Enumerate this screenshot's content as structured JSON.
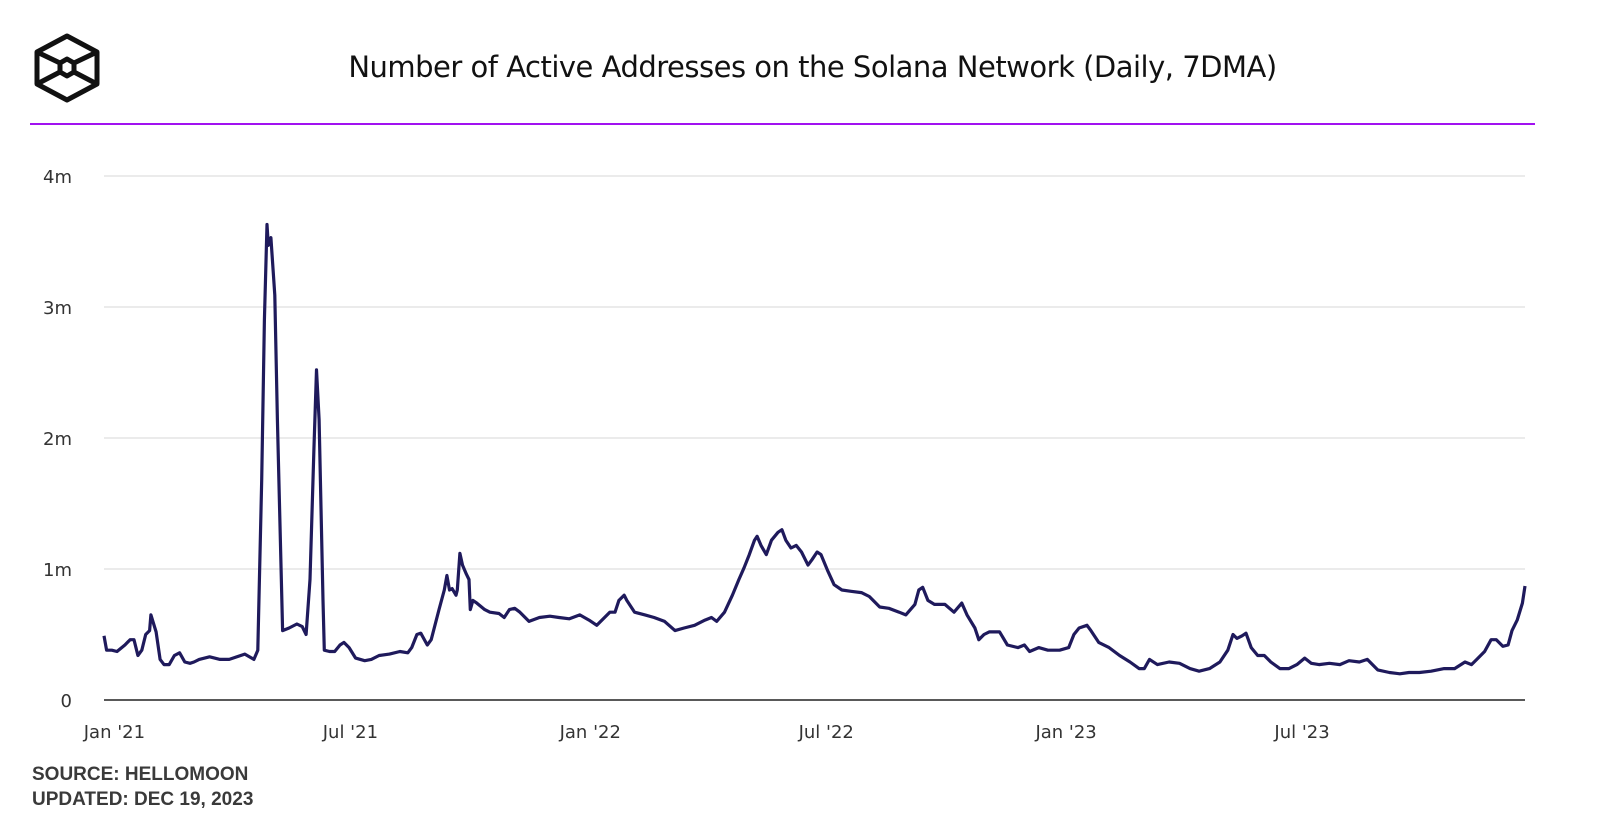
{
  "footer": {
    "source": "SOURCE: HELLOMOON",
    "updated": "UPDATED: DEC 19, 2023"
  },
  "colors": {
    "line": "#1f1a5c",
    "accent": "#a112f0",
    "grid": "#ebebeb"
  },
  "chart_data": {
    "type": "line",
    "title": "Number of Active Addresses on the Solana Network (Daily, 7DMA)",
    "xlabel": "",
    "ylabel": "",
    "x_unit": "days since 2021-01-01",
    "xlim": [
      -8,
      1082
    ],
    "ylim": [
      0,
      4
    ],
    "y_unit": "millions of addresses",
    "grid": true,
    "yticks": [
      {
        "value": 0,
        "label": "0"
      },
      {
        "value": 1,
        "label": "1m"
      },
      {
        "value": 2,
        "label": "2m"
      },
      {
        "value": 3,
        "label": "3m"
      },
      {
        "value": 4,
        "label": "4m"
      }
    ],
    "xticks": [
      {
        "value": 0,
        "label": "Jan '21"
      },
      {
        "value": 181,
        "label": "Jul '21"
      },
      {
        "value": 365,
        "label": "Jan '22"
      },
      {
        "value": 546,
        "label": "Jul '22"
      },
      {
        "value": 730,
        "label": "Jan '23"
      },
      {
        "value": 911,
        "label": "Jul '23"
      }
    ],
    "series": [
      {
        "name": "Active Addresses (7DMA)",
        "x": [
          -8,
          -6,
          -2,
          2,
          8,
          12,
          15,
          18,
          21,
          24,
          27,
          28,
          32,
          35,
          38,
          42,
          46,
          50,
          54,
          58,
          61,
          65,
          73,
          81,
          88,
          100,
          107,
          110,
          113,
          115,
          117,
          118,
          120,
          123,
          125,
          129,
          134,
          140,
          144,
          147,
          150,
          153,
          155,
          157,
          160,
          161,
          165,
          169,
          173,
          176,
          180,
          185,
          192,
          197,
          203,
          211,
          219,
          225,
          228,
          232,
          235,
          240,
          243,
          249,
          253,
          255,
          257,
          259,
          262,
          263,
          265,
          267,
          270,
          272,
          273,
          275,
          278,
          284,
          288,
          295,
          299,
          303,
          307,
          311,
          318,
          326,
          334,
          341,
          349,
          357,
          364,
          370,
          380,
          384,
          387,
          391,
          393,
          399,
          407,
          414,
          422,
          430,
          437,
          445,
          453,
          458,
          462,
          468,
          474,
          479,
          483,
          487,
          491,
          493,
          496,
          500,
          504,
          509,
          512,
          515,
          519,
          523,
          527,
          532,
          535,
          539,
          542,
          547,
          552,
          558,
          565,
          573,
          579,
          587,
          594,
          602,
          607,
          614,
          617,
          620,
          624,
          629,
          637,
          644,
          650,
          654,
          660,
          663,
          667,
          671,
          679,
          685,
          693,
          698,
          702,
          709,
          716,
          725,
          732,
          736,
          740,
          746,
          749,
          755,
          763,
          771,
          779,
          786,
          790,
          794,
          800,
          809,
          817,
          825,
          832,
          840,
          848,
          854,
          858,
          861,
          865,
          868,
          872,
          877,
          882,
          887,
          894,
          901,
          907,
          913,
          918,
          924,
          932,
          940,
          947,
          955,
          961,
          969,
          978,
          986,
          993,
          1001,
          1010,
          1020,
          1028,
          1036,
          1041,
          1045,
          1051,
          1056,
          1060,
          1065,
          1069,
          1072,
          1076,
          1080,
          1082
        ],
        "y": [
          0.49,
          0.38,
          0.38,
          0.37,
          0.42,
          0.46,
          0.46,
          0.34,
          0.38,
          0.5,
          0.53,
          0.65,
          0.52,
          0.31,
          0.27,
          0.27,
          0.34,
          0.36,
          0.29,
          0.28,
          0.29,
          0.31,
          0.33,
          0.31,
          0.31,
          0.35,
          0.31,
          0.38,
          1.68,
          2.9,
          3.63,
          3.47,
          3.53,
          3.09,
          2.14,
          0.53,
          0.55,
          0.58,
          0.56,
          0.5,
          0.92,
          1.91,
          2.52,
          2.14,
          0.76,
          0.38,
          0.37,
          0.37,
          0.42,
          0.44,
          0.4,
          0.32,
          0.3,
          0.31,
          0.34,
          0.35,
          0.37,
          0.36,
          0.4,
          0.5,
          0.51,
          0.42,
          0.46,
          0.69,
          0.84,
          0.95,
          0.84,
          0.85,
          0.8,
          0.84,
          1.12,
          1.03,
          0.96,
          0.92,
          0.69,
          0.76,
          0.74,
          0.69,
          0.67,
          0.66,
          0.63,
          0.69,
          0.7,
          0.67,
          0.6,
          0.63,
          0.64,
          0.63,
          0.62,
          0.65,
          0.61,
          0.57,
          0.67,
          0.67,
          0.76,
          0.8,
          0.76,
          0.67,
          0.65,
          0.63,
          0.6,
          0.53,
          0.55,
          0.57,
          0.61,
          0.63,
          0.6,
          0.67,
          0.8,
          0.92,
          1.01,
          1.11,
          1.22,
          1.25,
          1.18,
          1.11,
          1.22,
          1.28,
          1.3,
          1.22,
          1.16,
          1.18,
          1.13,
          1.03,
          1.07,
          1.13,
          1.11,
          0.99,
          0.88,
          0.84,
          0.83,
          0.82,
          0.79,
          0.71,
          0.7,
          0.67,
          0.65,
          0.73,
          0.84,
          0.86,
          0.76,
          0.73,
          0.73,
          0.67,
          0.74,
          0.65,
          0.55,
          0.46,
          0.5,
          0.52,
          0.52,
          0.42,
          0.4,
          0.42,
          0.37,
          0.4,
          0.38,
          0.38,
          0.4,
          0.5,
          0.55,
          0.57,
          0.53,
          0.44,
          0.4,
          0.34,
          0.29,
          0.24,
          0.24,
          0.31,
          0.27,
          0.29,
          0.28,
          0.24,
          0.22,
          0.24,
          0.29,
          0.38,
          0.5,
          0.47,
          0.49,
          0.51,
          0.4,
          0.34,
          0.34,
          0.29,
          0.24,
          0.24,
          0.27,
          0.32,
          0.28,
          0.27,
          0.28,
          0.27,
          0.3,
          0.29,
          0.31,
          0.23,
          0.21,
          0.2,
          0.21,
          0.21,
          0.22,
          0.24,
          0.24,
          0.29,
          0.27,
          0.31,
          0.37,
          0.46,
          0.46,
          0.41,
          0.42,
          0.53,
          0.61,
          0.74,
          0.87
        ]
      }
    ]
  }
}
